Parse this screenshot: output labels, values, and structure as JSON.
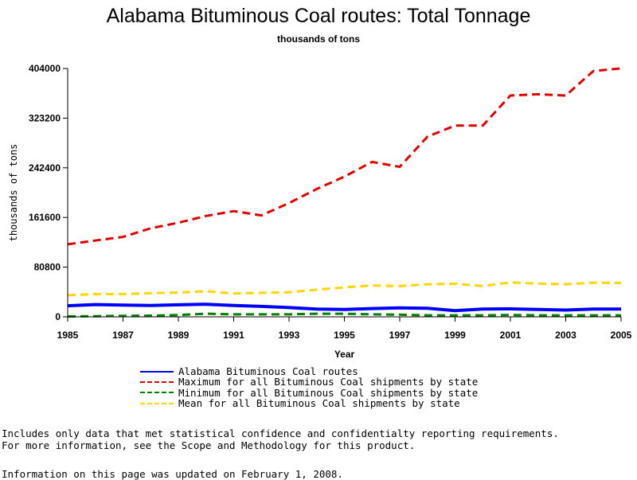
{
  "chart_data": {
    "type": "line",
    "title": "Alabama Bituminous Coal routes: Total Tonnage",
    "subtitle": "thousands of tons",
    "xlabel": "Year",
    "ylabel": "thousands of tons",
    "x": [
      1985,
      1986,
      1987,
      1988,
      1989,
      1990,
      1991,
      1992,
      1993,
      1994,
      1995,
      1996,
      1997,
      1998,
      1999,
      2000,
      2001,
      2002,
      2003,
      2004,
      2005
    ],
    "xlim": [
      1985,
      2005
    ],
    "ylim": [
      0,
      404000
    ],
    "x_ticks": [
      "1985",
      "1987",
      "1989",
      "1991",
      "1993",
      "1995",
      "1997",
      "1999",
      "2001",
      "2003",
      "2005"
    ],
    "y_ticks": [
      "0",
      "80800",
      "161600",
      "242400",
      "323200",
      "404000"
    ],
    "x_tick_values": [
      1985,
      1987,
      1989,
      1991,
      1993,
      1995,
      1997,
      1999,
      2001,
      2003,
      2005
    ],
    "y_tick_values": [
      0,
      80800,
      161600,
      242400,
      323200,
      404000
    ],
    "grid": false,
    "legend_position": "bottom",
    "series": [
      {
        "name": "Alabama Bituminous Coal routes",
        "color": "#0000ff",
        "style": "solid",
        "values": [
          18000,
          20000,
          19000,
          18500,
          19500,
          20500,
          18500,
          17000,
          15000,
          12500,
          12000,
          13500,
          14500,
          14000,
          10000,
          12500,
          13000,
          12000,
          11000,
          12500,
          12500
        ]
      },
      {
        "name": "Maximum for all Bituminous Coal shipments by state",
        "color": "#e00000",
        "style": "dashed",
        "values": [
          118000,
          124000,
          130000,
          144000,
          153000,
          164000,
          172000,
          165000,
          185000,
          208000,
          228000,
          252000,
          244000,
          293000,
          311000,
          311000,
          360000,
          362000,
          360000,
          400000,
          404000
        ]
      },
      {
        "name": "Minimum for all Bituminous Coal shipments by state",
        "color": "#008000",
        "style": "dashed",
        "values": [
          500,
          1000,
          1500,
          2000,
          3000,
          5000,
          4000,
          4000,
          4000,
          5000,
          5000,
          4000,
          3500,
          2500,
          2500,
          2500,
          3000,
          2500,
          2500,
          2500,
          2500
        ]
      },
      {
        "name": "Mean for all Bituminous Coal shipments by state",
        "color": "#ffd700",
        "style": "dashed",
        "values": [
          35000,
          37000,
          37000,
          38500,
          39500,
          41500,
          38000,
          39000,
          40000,
          44000,
          48000,
          51000,
          50000,
          53000,
          54000,
          50000,
          56000,
          54000,
          53000,
          55500,
          55000
        ]
      }
    ]
  },
  "notes": {
    "line1": "Includes only data that met statistical confidence and confidentialty reporting requirements.",
    "line2": "For more information, see the Scope and Methodology for this product.",
    "updated": "Information on this page was updated on February 1, 2008."
  }
}
